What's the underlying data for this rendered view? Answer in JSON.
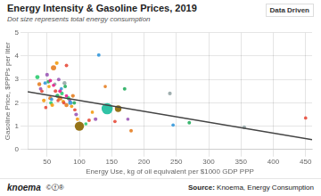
{
  "chart_data": {
    "type": "scatter",
    "title": "Energy Intensity & Gasoline Prices, 2019",
    "subtitle": "Dot size represents total energy consumption",
    "xlabel": "Energy Use, kg of oil equivalent per $1000 GDP PPP",
    "ylabel": "Gasoline Price, $PPPs per liter",
    "annotations": [
      "Data Driven",
      "knoema",
      "©ⓕ®",
      "Source:",
      " Knoema, Energy Consumption"
    ],
    "xlim": [
      20,
      460
    ],
    "ylim": [
      0,
      5
    ],
    "xticks": [
      50,
      100,
      150,
      200,
      250,
      300,
      350,
      400,
      450
    ],
    "yticks": [
      0,
      1,
      2,
      3,
      4,
      5
    ],
    "grid": true,
    "series": [
      {
        "type": "scatter",
        "x": [
          35,
          38,
          40,
          42,
          45,
          47,
          48,
          50,
          52,
          53,
          55,
          56,
          57,
          58,
          60,
          62,
          63,
          65,
          66,
          67,
          68,
          70,
          72,
          73,
          75,
          76,
          77,
          78,
          80,
          80,
          83,
          85,
          86,
          88,
          90,
          92,
          93,
          95,
          97,
          100,
          55,
          60,
          70,
          80,
          110,
          115,
          120,
          125,
          130,
          140,
          143,
          155,
          160,
          170,
          175,
          180,
          240,
          245,
          270,
          355,
          450
        ],
        "values": [
          3.1,
          2.8,
          2.6,
          2.5,
          2.1,
          2.85,
          1.8,
          3.2,
          2.9,
          2.7,
          2.2,
          2.0,
          2.15,
          1.9,
          3.5,
          2.8,
          2.5,
          3.7,
          2.3,
          2.1,
          3.0,
          2.2,
          2.6,
          2.4,
          2.05,
          2.0,
          2.85,
          2.7,
          1.9,
          3.6,
          2.2,
          2.1,
          2.0,
          1.85,
          2.3,
          2.0,
          1.7,
          1.5,
          1.3,
          1.0,
          2.95,
          2.75,
          2.5,
          2.3,
          1.1,
          1.25,
          1.6,
          1.3,
          4.05,
          2.7,
          1.75,
          1.2,
          1.75,
          2.6,
          1.3,
          0.8,
          2.4,
          1.05,
          1.15,
          0.95,
          1.35
        ],
        "sizes": [
          12,
          10,
          8,
          7,
          9,
          8,
          7,
          9,
          8,
          7,
          10,
          8,
          7,
          9,
          18,
          7,
          8,
          9,
          10,
          7,
          8,
          14,
          7,
          9,
          8,
          7,
          10,
          8,
          11,
          8,
          9,
          7,
          12,
          7,
          9,
          8,
          7,
          9,
          8,
          55,
          8,
          7,
          8,
          7,
          7,
          8,
          7,
          9,
          8,
          7,
          80,
          7,
          28,
          8,
          7,
          8,
          9,
          7,
          8,
          9,
          7
        ],
        "colors": [
          "#2ecc71",
          "#e67e22",
          "#9b59b6",
          "#e74c3c",
          "#f39c12",
          "#3498db",
          "#e74c3c",
          "#9b59b6",
          "#27ae60",
          "#f39c12",
          "#e67e22",
          "#2ecc71",
          "#3498db",
          "#f39c12",
          "#e67e22",
          "#95a5a6",
          "#e74c3c",
          "#f39c12",
          "#27ae60",
          "#e74c3c",
          "#9b59b6",
          "#e67e22",
          "#3498db",
          "#2ecc71",
          "#f39c12",
          "#e74c3c",
          "#95a5a6",
          "#27ae60",
          "#e67e22",
          "#e74c3c",
          "#2ecc71",
          "#9b59b6",
          "#3498db",
          "#f39c12",
          "#e67e22",
          "#27ae60",
          "#e74c3c",
          "#9b59b6",
          "#f39c12",
          "#8B6500",
          "#e91e8c",
          "#e91e8c",
          "#e91e8c",
          "#e91e8c",
          "#2ecc71",
          "#e74c3c",
          "#f39c12",
          "#9b59b6",
          "#3498db",
          "#e67e22",
          "#1abc9c",
          "#e74c3c",
          "#8B6500",
          "#27ae60",
          "#9b59b6",
          "#e67e22",
          "#95a5a6",
          "#3498db",
          "#27ae60",
          "#95a5a6",
          "#e74c3c"
        ]
      },
      {
        "type": "line",
        "x": [
          20,
          460
        ],
        "values": [
          2.47,
          0.42
        ],
        "color": "#444444"
      }
    ]
  }
}
